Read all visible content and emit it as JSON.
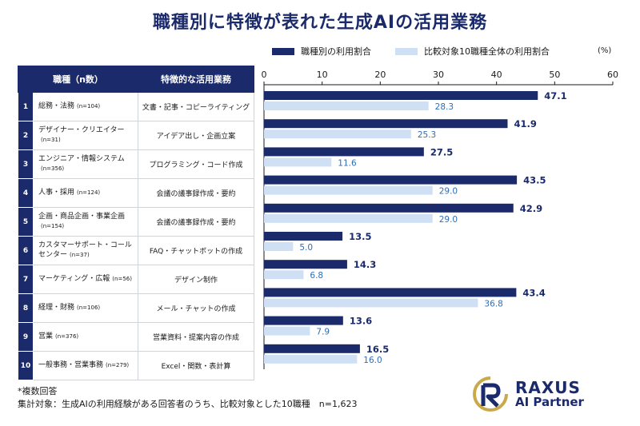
{
  "title": "職種別に特徴が表れた生成AIの活用業務",
  "legend": {
    "series1": "職種別の利用割合",
    "series2": "比較対象10職種全体の利用割合",
    "unit": "(%)"
  },
  "table": {
    "header_job": "職種（n数）",
    "header_use": "特徴的な活用業務",
    "rows": [
      {
        "rank": "1",
        "job": "総務・法務",
        "n": "(n=104)",
        "use": "文書・記事・コピーライティング"
      },
      {
        "rank": "2",
        "job": "デザイナー・クリエイター",
        "n": "(n=31)",
        "use": "アイデア出し・企画立案"
      },
      {
        "rank": "3",
        "job": "エンジニア・情報システム",
        "n": "(n=356)",
        "use": "プログラミング・コード作成"
      },
      {
        "rank": "4",
        "job": "人事・採用",
        "n": "(n=124)",
        "use": "会議の議事録作成・要約"
      },
      {
        "rank": "5",
        "job": "企画・商品企画・事業企画",
        "n": "(n=154)",
        "use": "会議の議事録作成・要約"
      },
      {
        "rank": "6",
        "job": "カスタマーサポート・コールセンター",
        "n": "(n=37)",
        "use": "FAQ・チャットボットの作成"
      },
      {
        "rank": "7",
        "job": "マーケティング・広報",
        "n": "(n=56)",
        "use": "デザイン制作"
      },
      {
        "rank": "8",
        "job": "経理・財務",
        "n": "(n=106)",
        "use": "メール・チャットの作成"
      },
      {
        "rank": "9",
        "job": "営業",
        "n": "(n=376)",
        "use": "営業資料・提案内容の作成"
      },
      {
        "rank": "10",
        "job": "一般事務・営業事務",
        "n": "(n=279)",
        "use": "Excel・関数・表計算"
      }
    ]
  },
  "chart_data": {
    "type": "bar",
    "orientation": "horizontal",
    "categories": [
      "総務・法務",
      "デザイナー・クリエイター",
      "エンジニア・情報システム",
      "人事・採用",
      "企画・商品企画・事業企画",
      "カスタマーサポート・コールセンター",
      "マーケティング・広報",
      "経理・財務",
      "営業",
      "一般事務・営業事務"
    ],
    "series": [
      {
        "name": "職種別の利用割合",
        "color": "#1b2a6b",
        "values": [
          47.1,
          41.9,
          27.5,
          43.5,
          42.9,
          13.5,
          14.3,
          43.4,
          13.6,
          16.5
        ]
      },
      {
        "name": "比較対象10職種全体の利用割合",
        "color": "#cfe0f5",
        "label_color": "#2f6db5",
        "values": [
          28.3,
          25.3,
          11.6,
          29.0,
          29.0,
          5.0,
          6.8,
          36.8,
          7.9,
          16.0
        ]
      }
    ],
    "xlim": [
      0,
      60
    ],
    "ticks": [
      0,
      10,
      20,
      30,
      40,
      50,
      60
    ],
    "unit": "(%)"
  },
  "notes": [
    "*複数回答",
    "集計対象：生成AIの利用経験がある回答者のうち、比較対象とした10職種　n=1,623"
  ],
  "logo": {
    "line1": "RAXUS",
    "line2": "AI Partner"
  }
}
